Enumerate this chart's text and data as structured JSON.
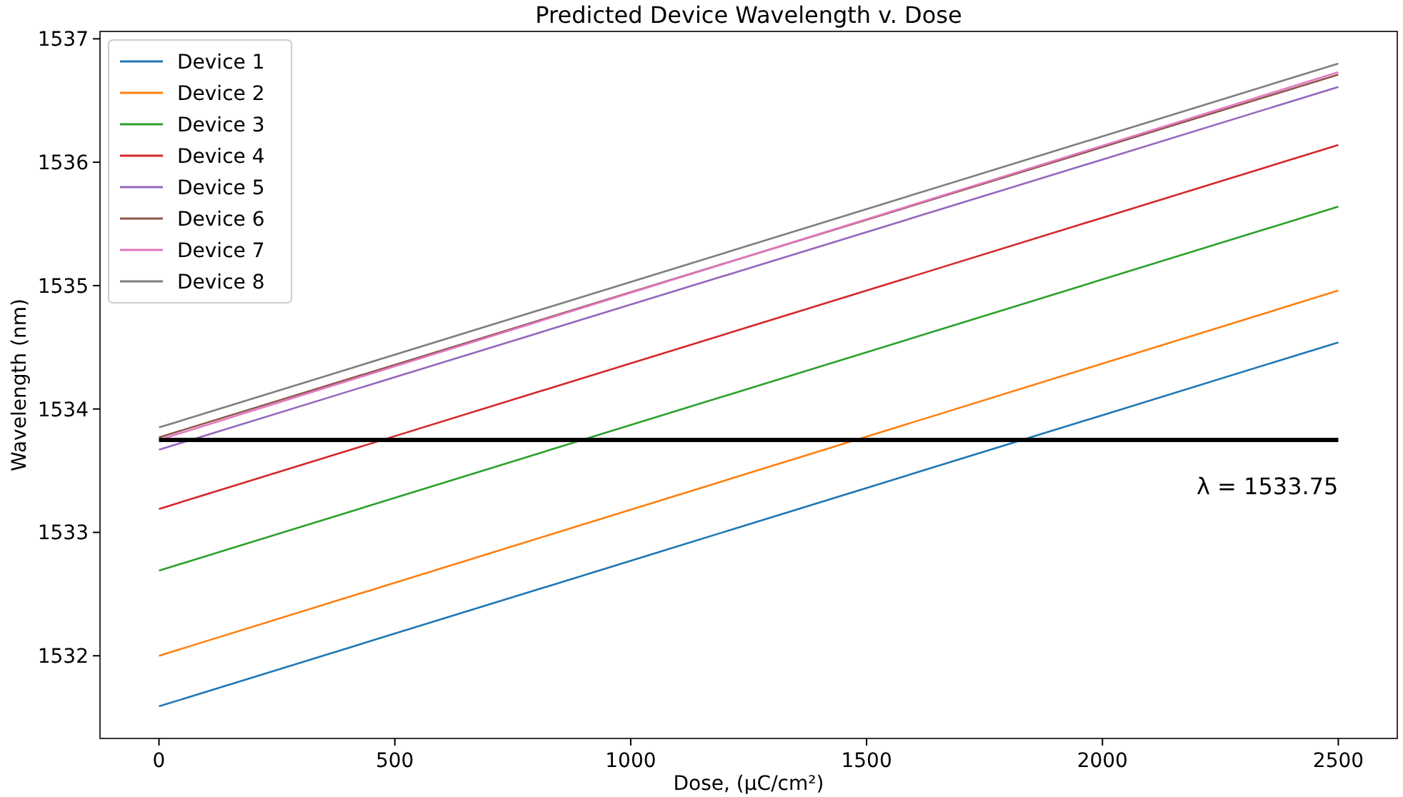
{
  "chart_data": {
    "type": "line",
    "title": "Predicted Device Wavelength v. Dose",
    "xlabel": "Dose, (μC/cm²)",
    "ylabel": "Wavelength (nm)",
    "x": [
      0,
      2500
    ],
    "series": [
      {
        "name": "Device 1",
        "color": "#1f77b4",
        "values": [
          1531.59,
          1534.54
        ]
      },
      {
        "name": "Device 2",
        "color": "#ff7f0e",
        "values": [
          1532.0,
          1534.96
        ]
      },
      {
        "name": "Device 3",
        "color": "#2ca02c",
        "values": [
          1532.69,
          1535.64
        ]
      },
      {
        "name": "Device 4",
        "color": "#d62728",
        "values": [
          1533.19,
          1536.14
        ]
      },
      {
        "name": "Device 5",
        "color": "#9467bd",
        "values": [
          1533.67,
          1536.61
        ]
      },
      {
        "name": "Device 6",
        "color": "#8c564b",
        "values": [
          1533.77,
          1536.71
        ]
      },
      {
        "name": "Device 7",
        "color": "#e377c2",
        "values": [
          1533.75,
          1536.73
        ]
      },
      {
        "name": "Device 8",
        "color": "#7f7f7f",
        "values": [
          1533.85,
          1536.8
        ]
      }
    ],
    "ref_lines": [
      {
        "axis": "y",
        "value": 1533.75,
        "color": "#000000",
        "label": "λ = 1533.75"
      }
    ],
    "xlim": [
      -125,
      2625
    ],
    "ylim": [
      1531.33,
      1537.06
    ],
    "xticks": [
      0,
      500,
      1000,
      1500,
      2000,
      2500
    ],
    "yticks": [
      1532,
      1533,
      1534,
      1535,
      1536,
      1537
    ],
    "legend": "top left",
    "grid": false
  }
}
